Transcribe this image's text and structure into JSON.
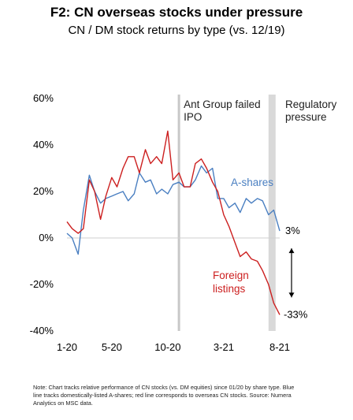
{
  "chart_data": {
    "type": "line",
    "title": "F2: CN overseas stocks under pressure",
    "subtitle": "CN / DM stock returns by type (vs. 12/19)",
    "ylim": [
      -40,
      60
    ],
    "y_ticks": [
      60,
      40,
      20,
      0,
      -20,
      -40
    ],
    "y_tick_labels": [
      "60%",
      "40%",
      "20%",
      "0%",
      "-20%",
      "-40%"
    ],
    "x_range": [
      "2020-01",
      "2021-08"
    ],
    "x_ticks": [
      {
        "x": "2020-01",
        "label": "1-20"
      },
      {
        "x": "2020-05",
        "label": "5-20"
      },
      {
        "x": "2020-10",
        "label": "10-20"
      },
      {
        "x": "2021-03",
        "label": "3-21"
      },
      {
        "x": "2021-08",
        "label": "8-21"
      }
    ],
    "grid": false,
    "zero_line": true,
    "series": [
      {
        "name": "A-shares",
        "color": "#4a7fc1",
        "x": [
          "2020-01",
          "2020-01-15",
          "2020-02",
          "2020-02-15",
          "2020-03",
          "2020-03-15",
          "2020-04",
          "2020-04-15",
          "2020-05",
          "2020-05-15",
          "2020-06",
          "2020-06-15",
          "2020-07",
          "2020-07-15",
          "2020-08",
          "2020-08-15",
          "2020-09",
          "2020-09-15",
          "2020-10",
          "2020-10-15",
          "2020-11",
          "2020-11-15",
          "2020-12",
          "2020-12-15",
          "2021-01",
          "2021-01-15",
          "2021-02",
          "2021-02-15",
          "2021-03",
          "2021-03-15",
          "2021-04",
          "2021-04-15",
          "2021-05",
          "2021-05-15",
          "2021-06",
          "2021-06-15",
          "2021-07",
          "2021-07-15",
          "2021-08"
        ],
        "values": [
          2,
          0,
          -7,
          12,
          27,
          20,
          15,
          17,
          18,
          19,
          20,
          16,
          19,
          28,
          24,
          25,
          19,
          21,
          19,
          23,
          24,
          22,
          22,
          25,
          31,
          28,
          30,
          17,
          17,
          13,
          15,
          11,
          17,
          15,
          17,
          16,
          10,
          12,
          3
        ]
      },
      {
        "name": "Foreign listings",
        "color": "#cc1f1f",
        "x": [
          "2020-01",
          "2020-01-15",
          "2020-02",
          "2020-02-15",
          "2020-03",
          "2020-03-15",
          "2020-04",
          "2020-04-15",
          "2020-05",
          "2020-05-15",
          "2020-06",
          "2020-06-15",
          "2020-07",
          "2020-07-15",
          "2020-08",
          "2020-08-15",
          "2020-09",
          "2020-09-15",
          "2020-10",
          "2020-10-15",
          "2020-11",
          "2020-11-15",
          "2020-12",
          "2020-12-15",
          "2021-01",
          "2021-01-15",
          "2021-02",
          "2021-02-15",
          "2021-03",
          "2021-03-15",
          "2021-04",
          "2021-04-15",
          "2021-05",
          "2021-05-15",
          "2021-06",
          "2021-06-15",
          "2021-07",
          "2021-07-15",
          "2021-08"
        ],
        "values": [
          7,
          4,
          2,
          4,
          25,
          20,
          8,
          18,
          26,
          22,
          30,
          35,
          35,
          28,
          38,
          32,
          35,
          32,
          46,
          25,
          28,
          22,
          22,
          32,
          34,
          30,
          24,
          20,
          10,
          5,
          -2,
          -8,
          -6,
          -9,
          -10,
          -14,
          -20,
          -28,
          -33
        ]
      }
    ],
    "annotations": {
      "event_line_label": "Ant Group failed IPO",
      "event_line_x": "2020-11",
      "shaded_region_label": "Regulatory pressure",
      "shaded_region_x": [
        "2021-07",
        "2021-07-20"
      ],
      "a_shares_label": "A-shares",
      "foreign_label": "Foreign listings",
      "a_shares_end_label": "3%",
      "foreign_end_label": "-33%"
    },
    "note": "Note: Chart tracks relative performance of CN stocks (vs. DM equities) since 01/20 by share type. Blue line tracks domestically-listed A-shares; red line corresponds to overseas CN stocks. Source: Numera Analytics on MSC data."
  }
}
